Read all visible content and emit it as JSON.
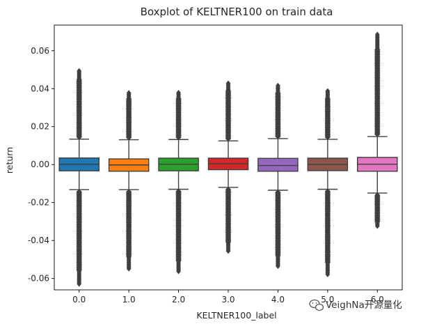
{
  "chart_data": {
    "type": "boxplot",
    "title": "Boxplot of KELTNER100 on train data",
    "xlabel": "KELTNER100_label",
    "ylabel": "return",
    "ylim": [
      -0.066,
      0.0735
    ],
    "yticks": [
      "-0.06",
      "-0.04",
      "-0.02",
      "0.00",
      "0.02",
      "0.04",
      "0.06"
    ],
    "grid": false,
    "categories": [
      "0.0",
      "1.0",
      "2.0",
      "3.0",
      "4.0",
      "5.0",
      "6.0"
    ],
    "boxes": [
      {
        "label": "0.0",
        "color": "#1f77b4",
        "q1": -0.0033,
        "median": 0.0002,
        "q3": 0.0035,
        "whisker_low": -0.0132,
        "whisker_high": 0.0134,
        "flier_max": 0.05,
        "flier_min": -0.063
      },
      {
        "label": "1.0",
        "color": "#ff7f0e",
        "q1": -0.0035,
        "median": -0.0002,
        "q3": 0.003,
        "whisker_low": -0.0132,
        "whisker_high": 0.0131,
        "flier_max": 0.0385,
        "flier_min": -0.055
      },
      {
        "label": "2.0",
        "color": "#2ca02c",
        "q1": -0.0033,
        "median": 0.0002,
        "q3": 0.0034,
        "whisker_low": -0.013,
        "whisker_high": 0.0132,
        "flier_max": 0.0385,
        "flier_min": -0.057
      },
      {
        "label": "3.0",
        "color": "#d62728",
        "q1": -0.0027,
        "median": 0.0004,
        "q3": 0.0034,
        "whisker_low": -0.012,
        "whisker_high": 0.0125,
        "flier_max": 0.0435,
        "flier_min": -0.046
      },
      {
        "label": "4.0",
        "color": "#9467bd",
        "q1": -0.0035,
        "median": -0.0005,
        "q3": 0.0033,
        "whisker_low": -0.0135,
        "whisker_high": 0.0137,
        "flier_max": 0.042,
        "flier_min": -0.054
      },
      {
        "label": "5.0",
        "color": "#8c564b",
        "q1": -0.0032,
        "median": 0.0001,
        "q3": 0.0034,
        "whisker_low": -0.013,
        "whisker_high": 0.0133,
        "flier_max": 0.039,
        "flier_min": -0.058
      },
      {
        "label": "6.0",
        "color": "#e377c2",
        "q1": -0.0035,
        "median": 0.0002,
        "q3": 0.0038,
        "whisker_low": -0.015,
        "whisker_high": 0.0148,
        "flier_max": 0.0685,
        "flier_min": -0.033
      }
    ],
    "whisker_color": "#3f3f3f",
    "flier_color": "#3f3f3f"
  },
  "watermark": {
    "text": "VeighNa开源量化",
    "icon": "wechat-icon"
  }
}
